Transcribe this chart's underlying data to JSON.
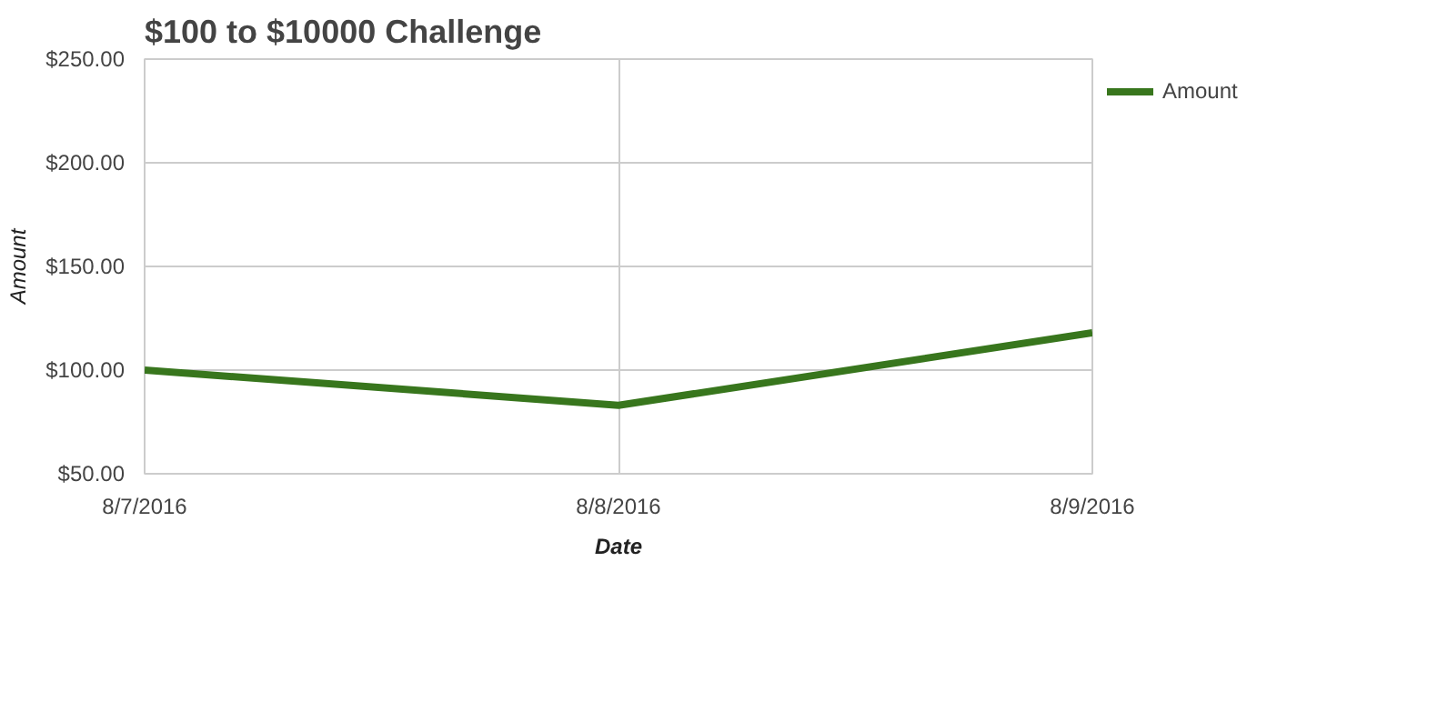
{
  "chart_data": {
    "type": "line",
    "title": "$100 to $10000 Challenge",
    "xlabel": "Date",
    "ylabel": "Amount",
    "x": [
      "2016-08-07",
      "2016-08-08",
      "2016-08-09"
    ],
    "series": [
      {
        "name": "Amount",
        "color": "#38761d",
        "values": [
          100,
          83,
          118
        ]
      }
    ],
    "xlim": [
      "2016-08-07",
      "2016-08-09"
    ],
    "xticks": [
      {
        "value": "2016-08-07",
        "label": "8/7/2016"
      },
      {
        "value": "2016-08-08",
        "label": "8/8/2016"
      },
      {
        "value": "2016-08-09",
        "label": "8/9/2016"
      }
    ],
    "ylim": [
      50,
      250
    ],
    "yticks": [
      {
        "value": 50,
        "label": "$50.00"
      },
      {
        "value": 100,
        "label": "$100.00"
      },
      {
        "value": 150,
        "label": "$150.00"
      },
      {
        "value": 200,
        "label": "$200.00"
      },
      {
        "value": 250,
        "label": "$250.00"
      }
    ],
    "grid": true,
    "legend": "top right",
    "marker": "none",
    "line_style": "solid"
  }
}
